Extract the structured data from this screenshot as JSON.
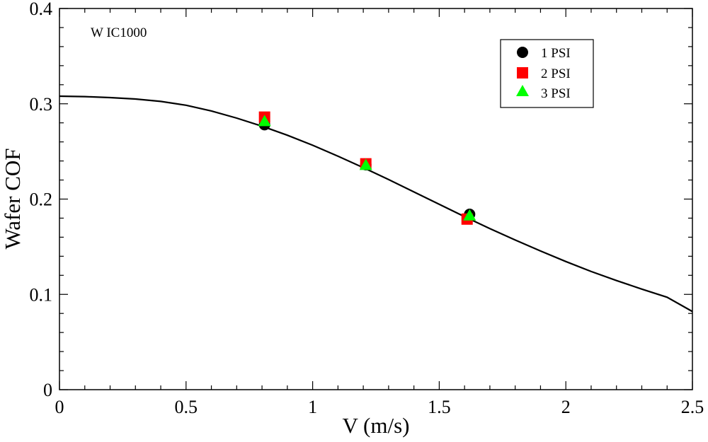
{
  "chart_data": {
    "type": "scatter",
    "title": "",
    "annotation": "W IC1000",
    "xlabel": "V (m/s)",
    "ylabel": "Wafer COF",
    "xlim": [
      0,
      2.5
    ],
    "ylim": [
      0,
      0.4
    ],
    "x_ticks": [
      0,
      0.5,
      1,
      1.5,
      2,
      2.5
    ],
    "x_tick_labels": [
      "0",
      "0.5",
      "1",
      "1.5",
      "2",
      "2.5"
    ],
    "y_ticks": [
      0,
      0.1,
      0.2,
      0.3,
      0.4
    ],
    "y_tick_labels": [
      "0",
      "0.1",
      "0.2",
      "0.3",
      "0.4"
    ],
    "grid": false,
    "legend_position": "top-right",
    "series": [
      {
        "name": "1 PSI",
        "marker": "circle",
        "color": "#000000",
        "x": [
          0.81,
          1.21,
          1.62
        ],
        "y": [
          0.278,
          0.236,
          0.184
        ]
      },
      {
        "name": "2 PSI",
        "marker": "square",
        "color": "#ff0000",
        "x": [
          0.81,
          1.21,
          1.61
        ],
        "y": [
          0.286,
          0.237,
          0.179
        ]
      },
      {
        "name": "3 PSI",
        "marker": "triangle",
        "color": "#00ff00",
        "x": [
          0.81,
          1.21,
          1.62
        ],
        "y": [
          0.281,
          0.235,
          0.182
        ]
      }
    ],
    "curve": {
      "color": "#000000",
      "x": [
        0,
        0.1,
        0.2,
        0.3,
        0.4,
        0.5,
        0.6,
        0.7,
        0.8,
        0.9,
        1.0,
        1.1,
        1.2,
        1.3,
        1.4,
        1.5,
        1.6,
        1.7,
        1.8,
        1.9,
        2.0,
        2.1,
        2.2,
        2.3,
        2.4,
        2.5
      ],
      "y": [
        0.308,
        0.3075,
        0.3065,
        0.305,
        0.3025,
        0.2985,
        0.2925,
        0.285,
        0.2765,
        0.267,
        0.2565,
        0.245,
        0.233,
        0.2205,
        0.2075,
        0.1945,
        0.1815,
        0.169,
        0.157,
        0.1455,
        0.1345,
        0.124,
        0.1145,
        0.1055,
        0.097,
        0.082
      ]
    }
  }
}
